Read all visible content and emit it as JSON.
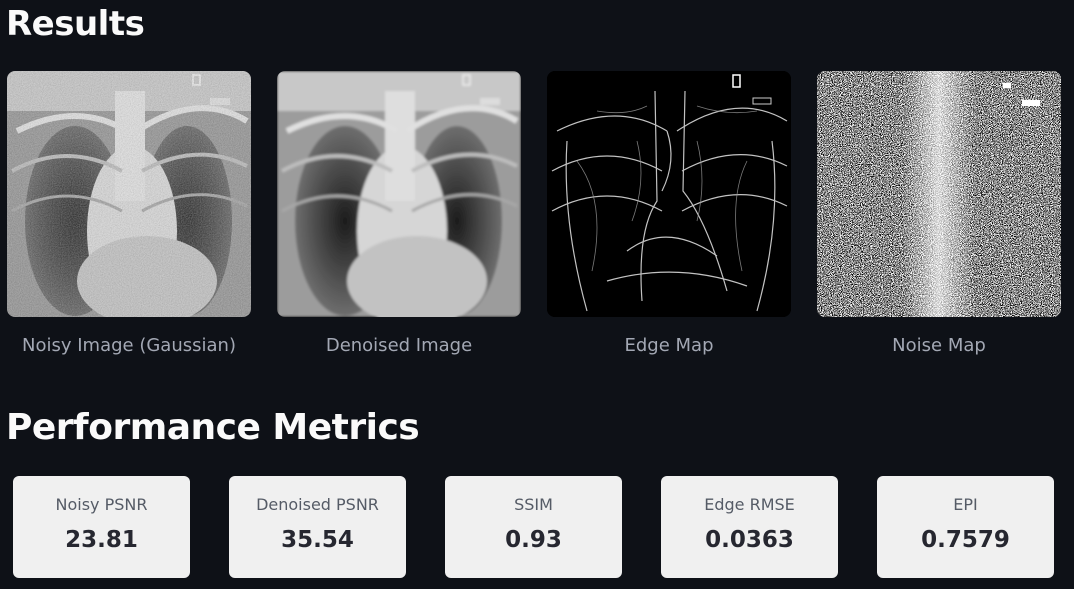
{
  "results": {
    "title": "Results",
    "images": [
      {
        "caption": "Noisy Image (Gaussian)",
        "kind": "noisy"
      },
      {
        "caption": "Denoised Image",
        "kind": "denoised"
      },
      {
        "caption": "Edge Map",
        "kind": "edge"
      },
      {
        "caption": "Noise Map",
        "kind": "noise"
      }
    ]
  },
  "metrics": {
    "title": "Performance Metrics",
    "items": [
      {
        "label": "Noisy PSNR",
        "value": "23.81"
      },
      {
        "label": "Denoised PSNR",
        "value": "35.54"
      },
      {
        "label": "SSIM",
        "value": "0.93"
      },
      {
        "label": "Edge RMSE",
        "value": "0.0363"
      },
      {
        "label": "EPI",
        "value": "0.7579"
      }
    ]
  }
}
